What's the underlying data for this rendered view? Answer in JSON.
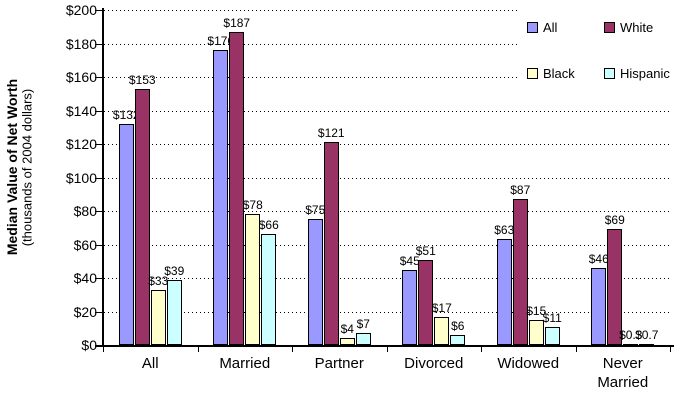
{
  "chart_data": {
    "type": "bar",
    "title": "",
    "ylabel": "Median Value of Net Worth",
    "ylabel_sub": "(thousands of 2004 dollars)",
    "xlabel": "",
    "categories": [
      "All",
      "Married",
      "Partner",
      "Divorced",
      "Widowed",
      "Never Married"
    ],
    "series": [
      {
        "name": "All",
        "color": "#9999FF",
        "values": [
          132,
          176,
          75,
          45,
          63,
          46
        ],
        "labels": [
          "$132",
          "$176",
          "$75",
          "$45",
          "$63",
          "$46"
        ]
      },
      {
        "name": "White",
        "color": "#993366",
        "values": [
          153,
          187,
          121,
          51,
          87,
          69
        ],
        "labels": [
          "$153",
          "$187",
          "$121",
          "$51",
          "$87",
          "$69"
        ]
      },
      {
        "name": "Black",
        "color": "#FFFFCC",
        "values": [
          33,
          78,
          4,
          17,
          15,
          0.3
        ],
        "labels": [
          "$33",
          "$78",
          "$4",
          "$17",
          "$15",
          "$0.3"
        ]
      },
      {
        "name": "Hispanic",
        "color": "#CCFFFF",
        "values": [
          39,
          66,
          7,
          6,
          11,
          0.7
        ],
        "labels": [
          "$39",
          "$66",
          "$7",
          "$6",
          "$11",
          "$0.7"
        ]
      }
    ],
    "ylim": [
      0,
      200
    ],
    "ytick_step": 20,
    "ytick_labels": [
      "$0",
      "$20",
      "$40",
      "$60",
      "$80",
      "$100",
      "$120",
      "$140",
      "$160",
      "$180",
      "$200"
    ],
    "grid": "horizontal-dotted",
    "legend_position": "top-right",
    "axis_color": "#000000",
    "background_color": "#FFFFFF"
  }
}
